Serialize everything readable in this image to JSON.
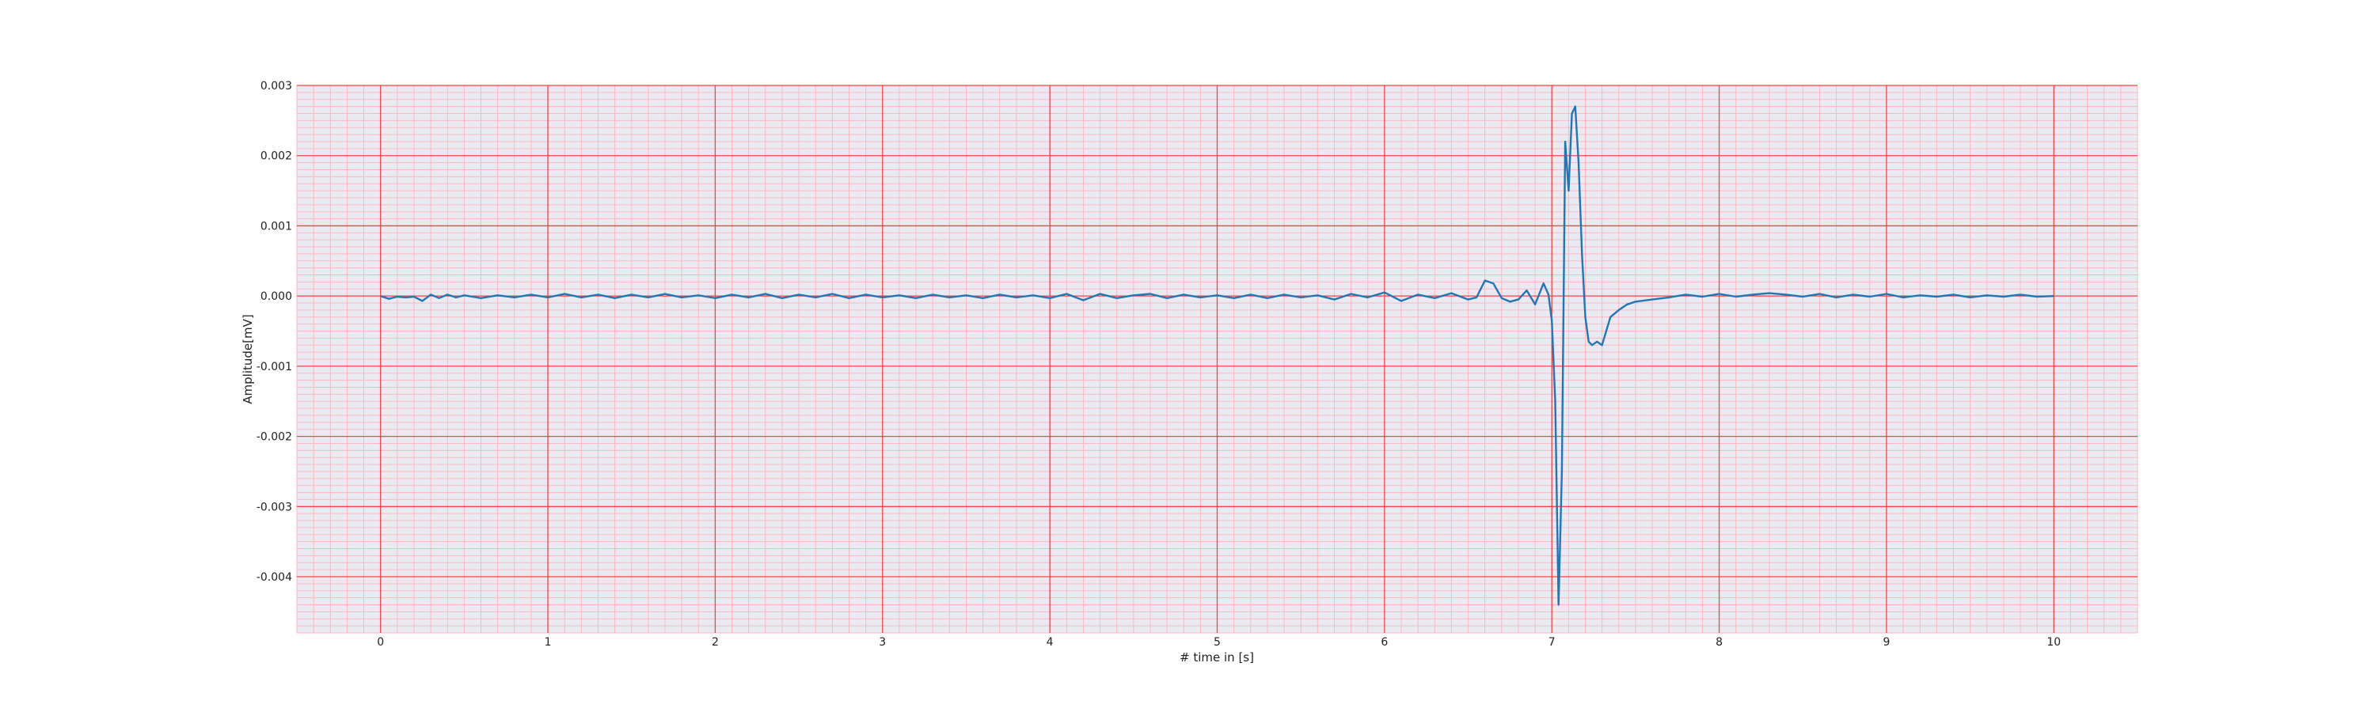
{
  "chart_data": {
    "type": "line",
    "title": "",
    "xlabel": "# time in [s]",
    "ylabel": "Amplitude[mV]",
    "xlim": [
      -0.5,
      10.5
    ],
    "ylim": [
      -0.0048,
      0.003
    ],
    "xticks": [
      0,
      1,
      2,
      3,
      4,
      5,
      6,
      7,
      8,
      9,
      10
    ],
    "xtick_labels": [
      "0",
      "1",
      "2",
      "3",
      "4",
      "5",
      "6",
      "7",
      "8",
      "9",
      "10"
    ],
    "yticks": [
      0.003,
      0.002,
      0.001,
      0.0,
      -0.001,
      -0.002,
      -0.003,
      -0.004
    ],
    "ytick_labels": [
      "0.003",
      "0.002",
      "0.001",
      "0.000",
      "-0.001",
      "-0.002",
      "-0.003",
      "-0.004"
    ],
    "grid": true,
    "minor_grid": true,
    "legend": "none",
    "colors": {
      "plot_background": "#eaeaf2",
      "major_grid": "#ff4040",
      "minor_grid": "#ffb6c1",
      "line": "#1f77b4"
    },
    "series": [
      {
        "x": [
          0,
          0.05,
          0.1,
          0.15,
          0.2,
          0.25,
          0.3,
          0.35,
          0.4,
          0.45,
          0.5,
          0.6,
          0.7,
          0.8,
          0.9,
          1.0,
          1.1,
          1.2,
          1.3,
          1.4,
          1.5,
          1.6,
          1.7,
          1.8,
          1.9,
          2.0,
          2.1,
          2.2,
          2.3,
          2.4,
          2.5,
          2.6,
          2.7,
          2.8,
          2.9,
          3.0,
          3.1,
          3.2,
          3.3,
          3.4,
          3.5,
          3.6,
          3.7,
          3.8,
          3.9,
          4.0,
          4.1,
          4.2,
          4.3,
          4.4,
          4.5,
          4.6,
          4.7,
          4.8,
          4.9,
          5.0,
          5.1,
          5.2,
          5.3,
          5.4,
          5.5,
          5.6,
          5.7,
          5.8,
          5.9,
          6.0,
          6.1,
          6.2,
          6.3,
          6.4,
          6.5,
          6.55,
          6.6,
          6.65,
          6.7,
          6.75,
          6.8,
          6.85,
          6.9,
          6.95,
          6.98,
          7.0,
          7.02,
          7.04,
          7.06,
          7.08,
          7.1,
          7.12,
          7.14,
          7.16,
          7.18,
          7.2,
          7.22,
          7.24,
          7.27,
          7.3,
          7.35,
          7.4,
          7.45,
          7.5,
          7.6,
          7.7,
          7.8,
          7.9,
          8.0,
          8.1,
          8.2,
          8.3,
          8.4,
          8.5,
          8.6,
          8.7,
          8.8,
          8.9,
          9.0,
          9.1,
          9.2,
          9.3,
          9.4,
          9.5,
          9.6,
          9.7,
          9.8,
          9.9,
          10.0
        ],
        "y": [
          0.0,
          -4e-05,
          -1e-05,
          -2e-05,
          -1e-05,
          -7e-05,
          2e-05,
          -3e-05,
          2e-05,
          -2e-05,
          1e-05,
          -3e-05,
          1e-05,
          -2e-05,
          2e-05,
          -2e-05,
          3e-05,
          -2e-05,
          2e-05,
          -3e-05,
          2e-05,
          -2e-05,
          3e-05,
          -2e-05,
          1e-05,
          -3e-05,
          2e-05,
          -2e-05,
          3e-05,
          -3e-05,
          2e-05,
          -2e-05,
          3e-05,
          -3e-05,
          2e-05,
          -2e-05,
          1e-05,
          -3e-05,
          2e-05,
          -2e-05,
          1e-05,
          -3e-05,
          2e-05,
          -2e-05,
          1e-05,
          -3e-05,
          3e-05,
          -6e-05,
          3e-05,
          -3e-05,
          1e-05,
          3e-05,
          -3e-05,
          2e-05,
          -2e-05,
          1e-05,
          -3e-05,
          2e-05,
          -3e-05,
          2e-05,
          -2e-05,
          1e-05,
          -5e-05,
          3e-05,
          -2e-05,
          5e-05,
          -7e-05,
          2e-05,
          -3e-05,
          4e-05,
          -5e-05,
          -2e-05,
          0.00022,
          0.00018,
          -3e-05,
          -8e-05,
          -5e-05,
          8e-05,
          -0.00012,
          0.00018,
          2e-05,
          -0.00035,
          -0.0015,
          -0.0044,
          -0.0025,
          0.0022,
          0.0015,
          0.0026,
          0.0027,
          0.0019,
          0.0006,
          -0.0003,
          -0.00065,
          -0.0007,
          -0.00065,
          -0.0007,
          -0.0003,
          -0.0002,
          -0.00012,
          -8e-05,
          -5e-05,
          -2e-05,
          2e-05,
          -1e-05,
          3e-05,
          -1e-05,
          2e-05,
          4e-05,
          2e-05,
          -1e-05,
          3e-05,
          -2e-05,
          2e-05,
          -1e-05,
          3e-05,
          -2e-05,
          1e-05,
          -1e-05,
          2e-05,
          -2e-05,
          1e-05,
          -1e-05,
          2e-05,
          -1e-05,
          0.0
        ]
      }
    ]
  }
}
